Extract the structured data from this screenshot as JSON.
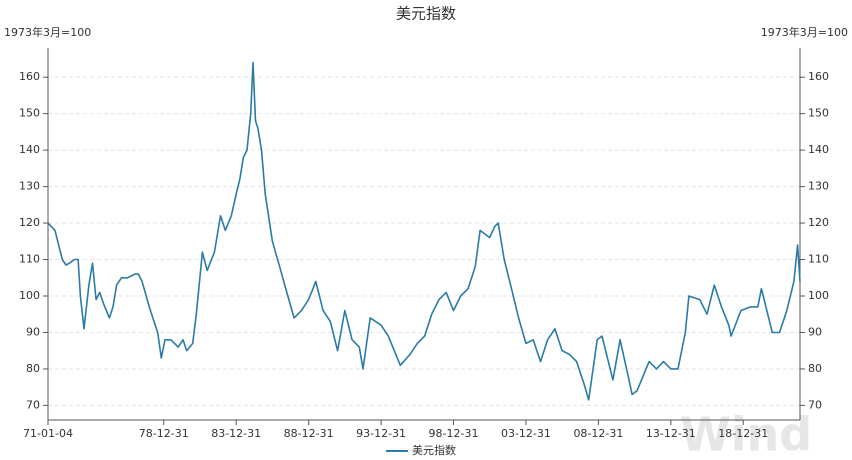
{
  "chart_data": {
    "type": "line",
    "title": "美元指数",
    "ylabel": "1973年3月=100",
    "y2label": "1973年3月=100",
    "watermark": "Wind",
    "x": [
      "71-01-04",
      "71-06-30",
      "71-12-31",
      "72-03-31",
      "72-06-30",
      "72-10-31",
      "73-01-31",
      "73-03-31",
      "73-06-30",
      "73-07-31",
      "73-10-31",
      "74-01-31",
      "74-04-30",
      "74-07-31",
      "74-10-31",
      "75-03-31",
      "75-06-30",
      "75-09-30",
      "76-01-31",
      "76-06-30",
      "76-12-31",
      "77-03-31",
      "77-06-30",
      "77-12-31",
      "78-03-31",
      "78-07-31",
      "78-10-31",
      "79-01-31",
      "79-06-30",
      "79-12-31",
      "80-04-30",
      "80-07-31",
      "80-12-31",
      "81-03-31",
      "81-08-31",
      "81-12-31",
      "82-06-30",
      "82-11-30",
      "83-03-31",
      "83-08-31",
      "83-12-31",
      "84-03-31",
      "84-06-30",
      "84-09-30",
      "84-12-31",
      "85-02-28",
      "85-04-30",
      "85-06-30",
      "85-09-30",
      "85-12-31",
      "86-06-30",
      "86-12-31",
      "87-06-30",
      "87-12-31",
      "88-06-30",
      "88-12-31",
      "89-06-30",
      "89-12-31",
      "90-06-30",
      "90-12-31",
      "91-06-30",
      "91-12-31",
      "92-06-30",
      "92-09-30",
      "93-03-31",
      "93-12-31",
      "94-06-30",
      "95-04-30",
      "95-12-31",
      "96-06-30",
      "96-12-31",
      "97-06-30",
      "97-12-31",
      "98-06-30",
      "98-12-31",
      "99-06-30",
      "99-12-31",
      "00-06-30",
      "00-10-31",
      "01-06-30",
      "01-10-31",
      "02-01-31",
      "02-06-30",
      "02-12-31",
      "03-06-30",
      "03-12-31",
      "04-06-30",
      "04-12-31",
      "05-06-30",
      "05-12-31",
      "06-06-30",
      "06-12-31",
      "07-06-30",
      "07-12-31",
      "08-04-30",
      "08-11-30",
      "09-03-31",
      "09-12-31",
      "10-06-30",
      "10-12-31",
      "11-04-30",
      "11-08-31",
      "12-06-30",
      "12-12-31",
      "13-06-30",
      "13-12-31",
      "14-06-30",
      "14-12-31",
      "15-03-31",
      "15-12-31",
      "16-06-30",
      "16-12-31",
      "17-06-30",
      "17-12-31",
      "18-02-28",
      "18-10-31",
      "19-06-30",
      "19-12-31",
      "20-03-31",
      "20-12-31",
      "21-06-30",
      "21-12-31",
      "22-06-30",
      "22-09-30",
      "22-11-30"
    ],
    "series": [
      {
        "name": "美元指数",
        "color": "#2a7ba8",
        "values": [
          120,
          118,
          110,
          108.5,
          109,
          110,
          110,
          100,
          91,
          94,
          103,
          109,
          99,
          101,
          98,
          94,
          97,
          103,
          105,
          105,
          106,
          106,
          104,
          97,
          94,
          90,
          83,
          88,
          88,
          86,
          88,
          85,
          87,
          95,
          112,
          107,
          112,
          122,
          118,
          122,
          128,
          132,
          138,
          140,
          150,
          164,
          148,
          146,
          140,
          128,
          115,
          108,
          101,
          94,
          96,
          99,
          104,
          96,
          93,
          85,
          96,
          88,
          86,
          80,
          94,
          92,
          89,
          81,
          84,
          87,
          89,
          95,
          99,
          101,
          96,
          100,
          102,
          108,
          118,
          116,
          119,
          120,
          110,
          102,
          94,
          87,
          88,
          82,
          88,
          91,
          85,
          84,
          82,
          76,
          71.5,
          88,
          89,
          77,
          88,
          79,
          73,
          74,
          82,
          80,
          82,
          80,
          80,
          90,
          100,
          99,
          95,
          103,
          97,
          92,
          89,
          96,
          97,
          97,
          102,
          90,
          90,
          96,
          104,
          114,
          104
        ]
      }
    ],
    "xlim": [
      "71-01-04",
      "22-11-30"
    ],
    "xticks": [
      "71-01-04",
      "78-12-31",
      "83-12-31",
      "88-12-31",
      "93-12-31",
      "98-12-31",
      "03-12-31",
      "08-12-31",
      "13-12-31",
      "18-12-31"
    ],
    "ylim": [
      66,
      168
    ],
    "yticks": [
      70,
      80,
      90,
      100,
      110,
      120,
      130,
      140,
      150,
      160
    ],
    "y2lim": [
      66,
      168
    ],
    "y2ticks": [
      70,
      80,
      90,
      100,
      110,
      120,
      130,
      140,
      150,
      160
    ],
    "grid": true
  }
}
